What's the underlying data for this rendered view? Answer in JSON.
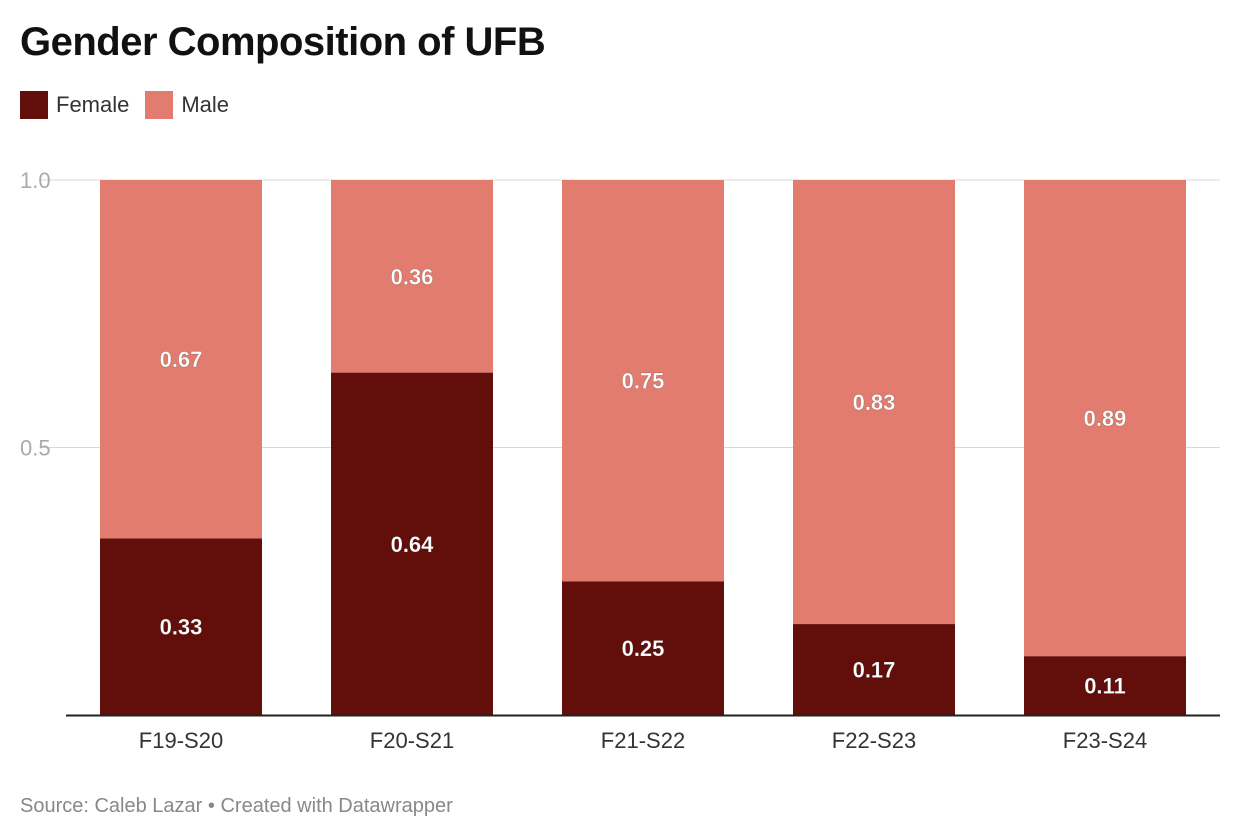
{
  "title": "Gender Composition of UFB",
  "legend": [
    {
      "label": "Female",
      "color": "#620f0b"
    },
    {
      "label": "Male",
      "color": "#e17c6e"
    }
  ],
  "footer": {
    "source": "Source: Caleb Lazar",
    "separator": "•",
    "credit": "Created with Datawrapper"
  },
  "chart_data": {
    "type": "bar",
    "stacked": true,
    "title": "Gender Composition of UFB",
    "xlabel": "",
    "ylabel": "",
    "ylim": [
      0,
      1
    ],
    "yticks": [
      0.5,
      1.0
    ],
    "ytick_labels": [
      "0.5",
      "1.0"
    ],
    "grid": true,
    "legend_position": "top-left",
    "categories": [
      "F19-S20",
      "F20-S21",
      "F21-S22",
      "F22-S23",
      "F23-S24"
    ],
    "series": [
      {
        "name": "Female",
        "color": "#620f0b",
        "values": [
          0.33,
          0.64,
          0.25,
          0.17,
          0.11
        ],
        "labels": [
          "0.33",
          "0.64",
          "0.25",
          "0.17",
          "0.11"
        ]
      },
      {
        "name": "Male",
        "color": "#e17c6e",
        "values": [
          0.67,
          0.36,
          0.75,
          0.83,
          0.89
        ],
        "labels": [
          "0.67",
          "0.36",
          "0.75",
          "0.83",
          "0.89"
        ]
      }
    ]
  }
}
